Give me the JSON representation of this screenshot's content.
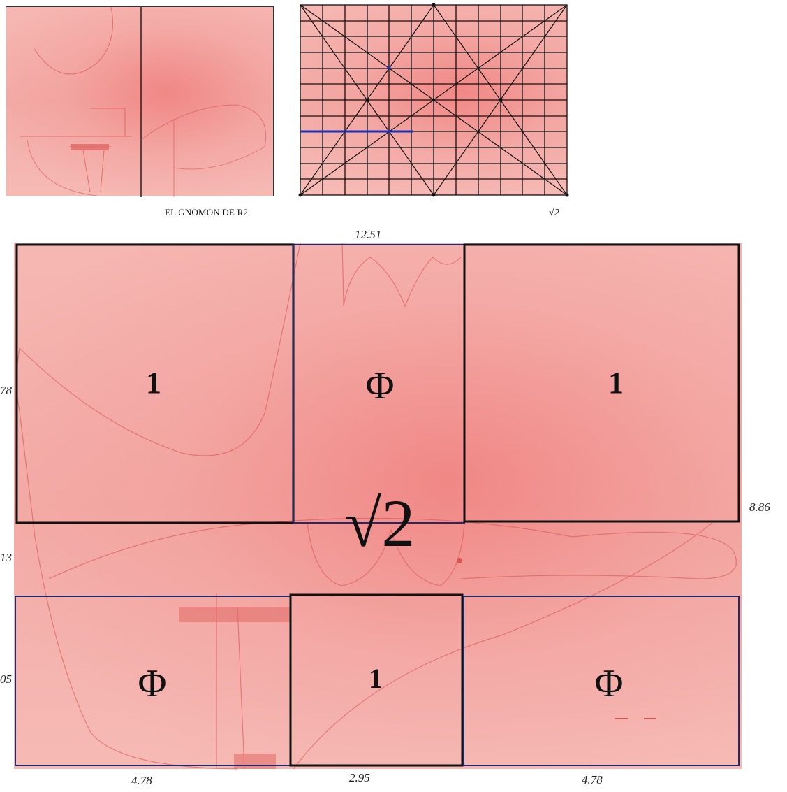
{
  "top_left_caption": "EL GNOMON DE R2",
  "top_right_caption": "√2",
  "big_figure": {
    "top_dimension": "12.51",
    "right_dimension": "8.86",
    "left_dimension_top": "78",
    "left_dimension_middle": "13",
    "left_dimension_bottom": "05",
    "bottom_dimensions": [
      "4.78",
      "2.95",
      "4.78"
    ],
    "upper_row": [
      {
        "label": "1"
      },
      {
        "label": "Φ"
      },
      {
        "label": "1"
      }
    ],
    "middle_label": "√2",
    "lower_row": [
      {
        "label": "Φ"
      },
      {
        "label": "1"
      },
      {
        "label": "Φ"
      }
    ]
  },
  "colors": {
    "paper": "#f4b0ab",
    "sketch_line": "#d9534f",
    "frame_black": "#111111",
    "frame_blue": "#1f2a6b",
    "accent_blue": "#1e2fb0"
  }
}
